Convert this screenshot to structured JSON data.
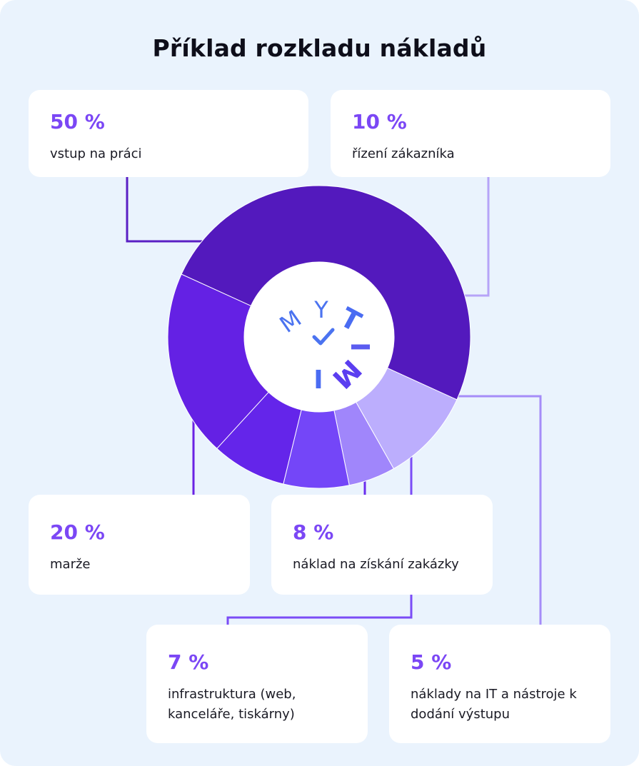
{
  "title": "Příklad rozkladu nákladů",
  "colors": {
    "background": "#eaf3fd",
    "accent_text": "#7b47f5"
  },
  "center_logo": {
    "letters": [
      "M",
      "Y",
      "T",
      "I",
      "M",
      "I"
    ],
    "check_icon": "checkmark-icon"
  },
  "chart_data": {
    "type": "pie",
    "variant": "donut",
    "legend": "callout-cards",
    "slices": [
      {
        "value": 50,
        "percent_label": "50 %",
        "label": "vstup na práci",
        "color": "#5319bd"
      },
      {
        "value": 10,
        "percent_label": "10 %",
        "label": "řízení zákazníka",
        "color": "#bcaefd"
      },
      {
        "value": 5,
        "percent_label": "5 %",
        "label": "náklady na IT a nástroje k dodání výstupu",
        "color": "#a086fb"
      },
      {
        "value": 7,
        "percent_label": "7 %",
        "label": "infrastruktura (web, kanceláře, tiskárny)",
        "color": "#7446f8"
      },
      {
        "value": 8,
        "percent_label": "8 %",
        "label": "náklad na získání zakázky",
        "color": "#6425ea"
      },
      {
        "value": 20,
        "percent_label": "20 %",
        "label": "marže",
        "color": "#6421e4"
      }
    ]
  }
}
